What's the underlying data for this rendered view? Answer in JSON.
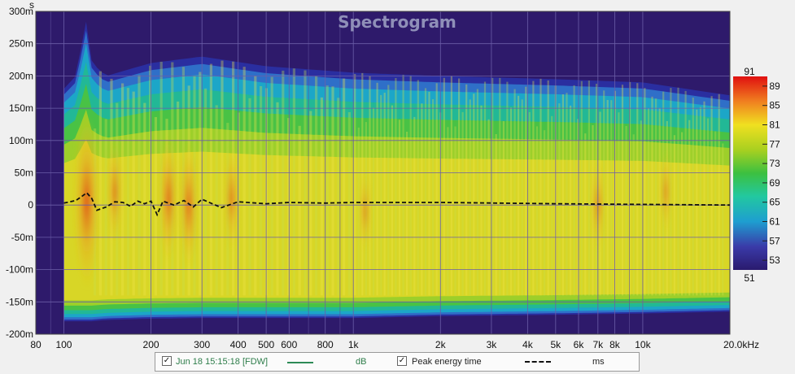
{
  "chart_data": {
    "type": "heatmap",
    "title": "Spectrogram",
    "y_unit": "s",
    "x_unit": "kHz",
    "x_scale": "log",
    "xlim": [
      80,
      20000
    ],
    "ylim": [
      -0.2,
      0.3
    ],
    "x_ticks": [
      {
        "value": 80,
        "label": "80"
      },
      {
        "value": 100,
        "label": "100"
      },
      {
        "value": 200,
        "label": "200"
      },
      {
        "value": 300,
        "label": "300"
      },
      {
        "value": 400,
        "label": "400"
      },
      {
        "value": 500,
        "label": "500"
      },
      {
        "value": 600,
        "label": "600"
      },
      {
        "value": 800,
        "label": "800"
      },
      {
        "value": 1000,
        "label": "1k"
      },
      {
        "value": 2000,
        "label": "2k"
      },
      {
        "value": 3000,
        "label": "3k"
      },
      {
        "value": 4000,
        "label": "4k"
      },
      {
        "value": 5000,
        "label": "5k"
      },
      {
        "value": 6000,
        "label": "6k"
      },
      {
        "value": 7000,
        "label": "7k"
      },
      {
        "value": 8000,
        "label": "8k"
      },
      {
        "value": 10000,
        "label": "10k"
      },
      {
        "value": 20000,
        "label": "20.0kHz"
      }
    ],
    "y_ticks": [
      {
        "value": 0.3,
        "label": "300m"
      },
      {
        "value": 0.25,
        "label": "250m"
      },
      {
        "value": 0.2,
        "label": "200m"
      },
      {
        "value": 0.15,
        "label": "150m"
      },
      {
        "value": 0.1,
        "label": "100m"
      },
      {
        "value": 0.05,
        "label": "50m"
      },
      {
        "value": 0,
        "label": "0"
      },
      {
        "value": -0.05,
        "label": "-50m"
      },
      {
        "value": -0.1,
        "label": "-100m"
      },
      {
        "value": -0.15,
        "label": "-150m"
      },
      {
        "value": -0.2,
        "label": "-200m"
      }
    ],
    "colorbar": {
      "min": 51,
      "max": 91,
      "ticks": [
        89,
        85,
        81,
        77,
        73,
        69,
        65,
        61,
        57,
        53
      ],
      "top_label": "91",
      "bottom_label": "51"
    },
    "grid": true,
    "background_color": "#2e1a6b",
    "peak_energy_time": {
      "name": "Peak energy time",
      "unit": "ms",
      "style": "dashed",
      "color": "#111111",
      "x": [
        100,
        110,
        115,
        120,
        125,
        130,
        140,
        150,
        160,
        170,
        180,
        190,
        200,
        210,
        220,
        240,
        260,
        280,
        300,
        350,
        400,
        500,
        600,
        800,
        1000,
        2000,
        5000,
        10000,
        20000
      ],
      "y": [
        0.003,
        0.007,
        0.013,
        0.019,
        0.01,
        -0.008,
        -0.003,
        0.005,
        0.004,
        -0.002,
        0.006,
        0.002,
        0.006,
        -0.015,
        0.006,
        0.0,
        0.007,
        -0.003,
        0.009,
        -0.004,
        0.005,
        0.002,
        0.004,
        0.003,
        0.004,
        0.004,
        0.002,
        0.001,
        0.0
      ]
    },
    "energy_envelope": {
      "x": [
        100,
        110,
        120,
        125,
        140,
        200,
        300,
        500,
        1000,
        2000,
        5000,
        10000,
        20000
      ],
      "top": [
        0.18,
        0.2,
        0.29,
        0.22,
        0.2,
        0.22,
        0.23,
        0.215,
        0.205,
        0.2,
        0.195,
        0.19,
        0.17
      ],
      "bottom": [
        -0.18,
        -0.18,
        -0.18,
        -0.18,
        -0.178,
        -0.176,
        -0.175,
        -0.175,
        -0.175,
        -0.172,
        -0.17,
        -0.168,
        -0.165
      ]
    },
    "hot_spots": [
      {
        "x": 120,
        "y": 0.005,
        "level": 90
      },
      {
        "x": 150,
        "y": 0.02,
        "level": 84
      },
      {
        "x": 230,
        "y": 0.01,
        "level": 86
      },
      {
        "x": 270,
        "y": 0.0,
        "level": 86
      },
      {
        "x": 380,
        "y": 0.01,
        "level": 84
      },
      {
        "x": 1100,
        "y": -0.01,
        "level": 82
      },
      {
        "x": 7000,
        "y": 0.0,
        "level": 83
      },
      {
        "x": 12000,
        "y": 0.02,
        "level": 82
      }
    ]
  },
  "legend": {
    "series1_checked": "✓",
    "series1_label": "Jun 18 15:15:18 [FDW]",
    "series1_color": "#2e8b57",
    "series1_unit": "dB",
    "series2_checked": "✓",
    "series2_label": "Peak energy time",
    "series2_unit": "ms"
  }
}
